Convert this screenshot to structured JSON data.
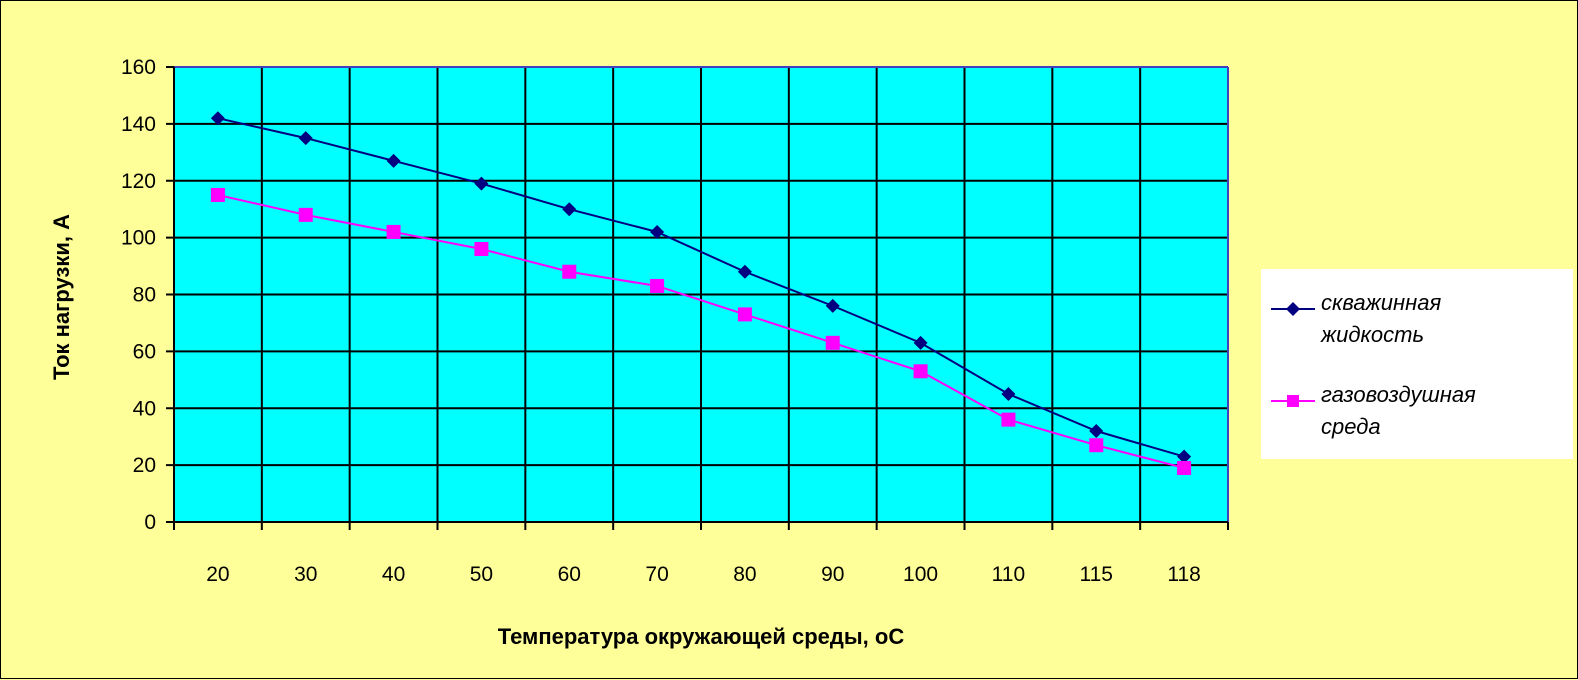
{
  "chart_data": {
    "type": "line",
    "title": "",
    "xlabel": "Температура окружающей среды, оС",
    "ylabel": "Ток нагрузки, А",
    "categories": [
      "20",
      "30",
      "40",
      "50",
      "60",
      "70",
      "80",
      "90",
      "100",
      "110",
      "115",
      "118"
    ],
    "ylim": [
      0,
      160
    ],
    "yticks": [
      0,
      20,
      40,
      60,
      80,
      100,
      120,
      140,
      160
    ],
    "grid": true,
    "legend_position": "right",
    "series": [
      {
        "name": "скважинная жидкость",
        "name_lines": [
          "скважинная",
          "жидкость"
        ],
        "color": "#000080",
        "marker": "diamond",
        "values": [
          142,
          135,
          127,
          119,
          110,
          102,
          88,
          76,
          63,
          45,
          32,
          23
        ]
      },
      {
        "name": "газовоздушная среда",
        "name_lines": [
          "газовоздушная",
          "среда"
        ],
        "color": "#ff00ff",
        "marker": "square",
        "values": [
          115,
          108,
          102,
          96,
          88,
          83,
          73,
          63,
          53,
          36,
          27,
          19
        ]
      }
    ],
    "colors": {
      "plot_background": "#00ffff",
      "chart_background": "#ffff99",
      "gridlines": "#000000"
    }
  }
}
